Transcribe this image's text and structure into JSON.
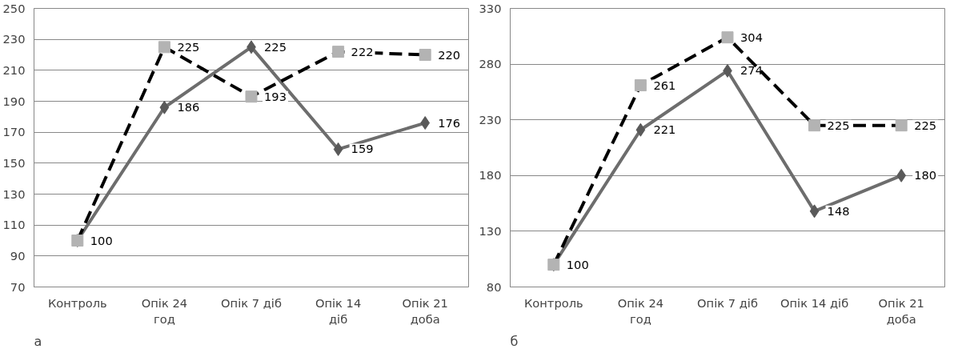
{
  "chart_data": [
    {
      "type": "line",
      "categories": [
        "Контроль",
        "Опік 24\nгод",
        "Опік 7 діб",
        "Опік 14\nдіб",
        "Опік 21\nдоба"
      ],
      "ylim": [
        70,
        250
      ],
      "yticks": [
        70,
        90,
        110,
        130,
        150,
        170,
        190,
        210,
        230,
        250
      ],
      "grid": "y",
      "data_labels": true,
      "annotations": [
        "а"
      ],
      "series": [
        {
          "color": "#6d6d6d",
          "marker": "diamond",
          "line_style": "solid",
          "values": [
            100,
            186,
            225,
            159,
            176
          ],
          "value_labels": [
            null,
            "186",
            "225",
            "159",
            "176"
          ]
        },
        {
          "color": "#000000",
          "marker": "square",
          "line_style": "dashed",
          "values": [
            100,
            225,
            193,
            222,
            220
          ]
        }
      ]
    },
    {
      "type": "line",
      "categories": [
        "Контроль",
        "Опік 24\nгод",
        "Опік 7 діб",
        "Опік 14 діб",
        "Опік 21\nдоба"
      ],
      "ylim": [
        80,
        330
      ],
      "yticks": [
        80,
        130,
        180,
        230,
        280,
        330
      ],
      "grid": "y",
      "data_labels": true,
      "annotations": [
        "б"
      ],
      "series": [
        {
          "color": "#6d6d6d",
          "marker": "diamond",
          "line_style": "solid",
          "values": [
            100,
            221,
            274,
            148,
            180
          ],
          "value_labels": [
            null,
            "221",
            "274",
            "148",
            "180"
          ]
        },
        {
          "color": "#000000",
          "marker": "square",
          "line_style": "dashed",
          "values": [
            100,
            261,
            304,
            225,
            225
          ]
        }
      ]
    }
  ]
}
